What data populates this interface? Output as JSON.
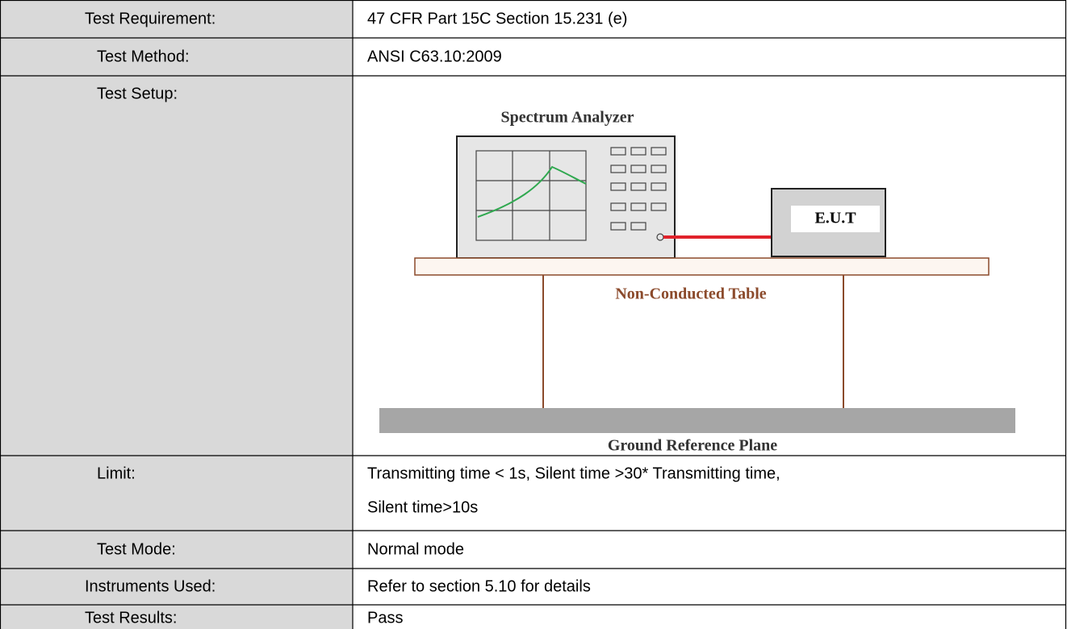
{
  "table": {
    "rows": [
      [
        "Test Requirement:",
        "47 CFR Part 15C Section 15.231 (e)"
      ],
      [
        "Test Method:",
        "ANSI C63.10:2009"
      ],
      [
        "Test Setup:"
      ],
      [
        "Limit:",
        "Transmitting time < 1s, Silent time >30* Transmitting time,",
        "Silent time>10s"
      ],
      [
        "Test Mode:",
        "Normal mode"
      ],
      [
        "Instruments Used:",
        "Refer to section 5.10 for details"
      ],
      [
        "Test Results:",
        "Pass"
      ]
    ]
  },
  "diagram": {
    "analyzer": "Spectrum Analyzer",
    "eut": "E.U.T",
    "table": "Non-Conducted Table",
    "ground": "Ground Reference Plane"
  }
}
